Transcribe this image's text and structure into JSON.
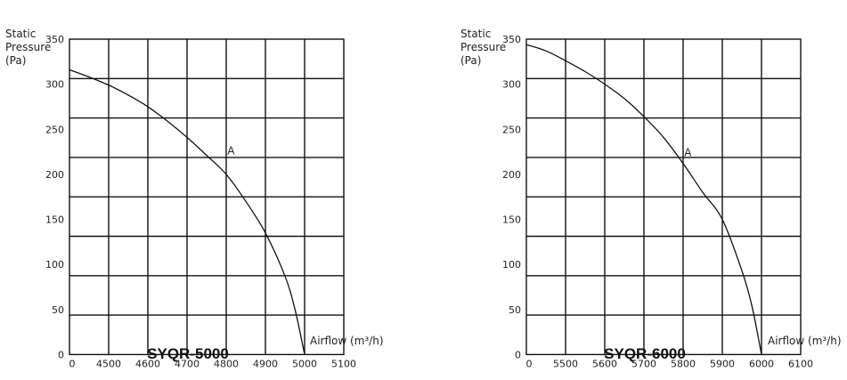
{
  "chart_data": [
    {
      "type": "line",
      "title": "SYQR-5000",
      "ylabel": [
        "Static",
        "Pressure",
        "(Pa)"
      ],
      "xlabel": "Airflow (m³/h)",
      "x_ticks": [
        "0",
        "4500",
        "4600",
        "4700",
        "4800",
        "4900",
        "5000",
        "5100"
      ],
      "y_ticks": [
        0,
        50,
        100,
        150,
        200,
        250,
        300,
        350
      ],
      "ylim": [
        0,
        350
      ],
      "grid": true,
      "series": [
        {
          "x": [
            4400,
            4450,
            4500,
            4550,
            4600,
            4650,
            4700,
            4750,
            4800,
            4850,
            4900,
            4950,
            4975,
            5000
          ],
          "y": [
            316,
            308,
            299,
            288,
            275,
            259,
            241,
            221,
            200,
            170,
            135,
            87,
            51,
            0
          ]
        }
      ],
      "point_label": {
        "text": "A",
        "x": 4812,
        "y": 226
      }
    },
    {
      "type": "line",
      "title": "SYQR-6000",
      "ylabel": [
        "Static",
        "Pressure",
        "(Pa)"
      ],
      "xlabel": "Airflow (m³/h)",
      "x_ticks": [
        "0",
        "5500",
        "5600",
        "5700",
        "5800",
        "5900",
        "6000",
        "6100"
      ],
      "y_ticks": [
        0,
        50,
        100,
        150,
        200,
        250,
        300,
        350
      ],
      "ylim": [
        0,
        350
      ],
      "grid": true,
      "series": [
        {
          "x": [
            5400,
            5450,
            5500,
            5550,
            5600,
            5650,
            5700,
            5750,
            5800,
            5850,
            5900,
            5950,
            5975,
            6000
          ],
          "y": [
            344,
            337,
            326,
            314,
            300,
            284,
            264,
            241,
            212,
            180,
            150,
            93,
            55,
            0
          ]
        }
      ],
      "point_label": {
        "text": "A",
        "x": 5812,
        "y": 224
      }
    }
  ]
}
